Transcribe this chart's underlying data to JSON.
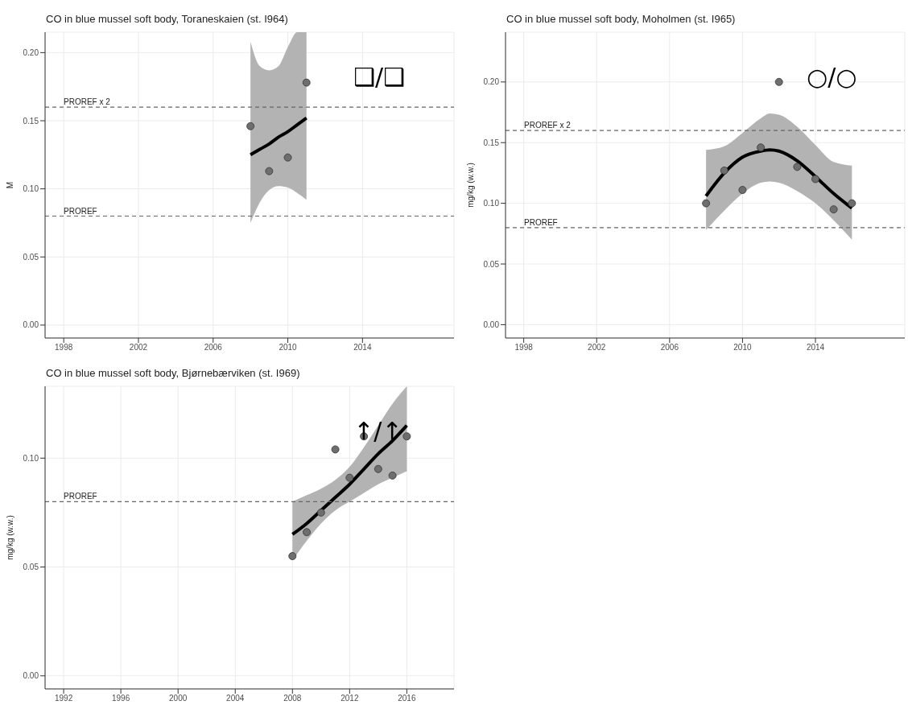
{
  "chart_data": [
    {
      "type": "scatter",
      "title": "CO in blue mussel soft body, Toraneskaien (st. I964)",
      "ylabel": "M",
      "marker": "circle",
      "grid": true,
      "legend": false,
      "xlim": [
        1997,
        2018.9
      ],
      "xticks": [
        1998,
        2002,
        2006,
        2010,
        2014
      ],
      "ylim": [
        -0.0095,
        0.215
      ],
      "yticks": [
        {
          "value": 0,
          "label": "0.00"
        },
        {
          "value": 0.05,
          "label": "0.05"
        },
        {
          "value": 0.1,
          "label": "0.10"
        },
        {
          "value": 0.15,
          "label": "0.15"
        },
        {
          "value": 0.2,
          "label": "0.20"
        }
      ],
      "ref_lines": [
        {
          "axis": "y",
          "value": 0.16,
          "label": "PROREF x 2",
          "color": "#666666",
          "line_style": "dashed"
        },
        {
          "axis": "y",
          "value": 0.08,
          "label": "PROREF",
          "color": "#666666",
          "line_style": "dashed"
        }
      ],
      "annotations": [
        "❑/❑"
      ],
      "series": [
        {
          "color": "#6e6e6e",
          "x": [
            2008,
            2009,
            2010,
            2011
          ],
          "values": [
            0.146,
            0.113,
            0.123,
            0.178
          ]
        },
        {
          "type": "line",
          "marker": "none",
          "color": "#000000",
          "x": [
            2008,
            2008.5,
            2009,
            2009.5,
            2010,
            2010.5,
            2011
          ],
          "values": [
            0.125,
            0.129,
            0.133,
            0.138,
            0.142,
            0.147,
            0.152
          ],
          "lower": [
            0.075,
            0.09,
            0.099,
            0.102,
            0.101,
            0.097,
            0.092
          ],
          "upper": [
            0.208,
            0.19,
            0.187,
            0.19,
            0.204,
            0.215,
            0.215
          ]
        }
      ]
    },
    {
      "type": "scatter",
      "title": "CO in blue mussel soft body, Moholmen (st. I965)",
      "ylabel": "mg/kg (w.w.)",
      "marker": "circle",
      "grid": true,
      "legend": false,
      "xlim": [
        1997,
        2018.9
      ],
      "xticks": [
        1998,
        2002,
        2006,
        2010,
        2014
      ],
      "ylim": [
        -0.011,
        0.241
      ],
      "yticks": [
        {
          "value": 0,
          "label": "0.00"
        },
        {
          "value": 0.05,
          "label": "0.05"
        },
        {
          "value": 0.1,
          "label": "0.10"
        },
        {
          "value": 0.15,
          "label": "0.15"
        },
        {
          "value": 0.2,
          "label": "0.20"
        }
      ],
      "ref_lines": [
        {
          "axis": "y",
          "value": 0.16,
          "label": "PROREF x 2",
          "color": "#666666",
          "line_style": "dashed"
        },
        {
          "axis": "y",
          "value": 0.08,
          "label": "PROREF",
          "color": "#666666",
          "line_style": "dashed"
        }
      ],
      "annotations": [
        "○/○"
      ],
      "series": [
        {
          "color": "#6e6e6e",
          "x": [
            2008,
            2009,
            2010,
            2011,
            2012,
            2013,
            2014,
            2015,
            2016
          ],
          "values": [
            0.1,
            0.127,
            0.111,
            0.146,
            0.2,
            0.13,
            0.12,
            0.095,
            0.1
          ]
        },
        {
          "type": "line",
          "marker": "none",
          "color": "#000000",
          "x": [
            2008,
            2009,
            2010,
            2011,
            2011.5,
            2012,
            2013,
            2014,
            2015,
            2016
          ],
          "values": [
            0.106,
            0.125,
            0.138,
            0.143,
            0.144,
            0.143,
            0.135,
            0.122,
            0.108,
            0.096
          ],
          "lower": [
            0.078,
            0.094,
            0.108,
            0.117,
            0.118,
            0.117,
            0.11,
            0.1,
            0.086,
            0.07
          ],
          "upper": [
            0.144,
            0.147,
            0.158,
            0.17,
            0.174,
            0.173,
            0.163,
            0.148,
            0.134,
            0.131
          ]
        }
      ]
    },
    {
      "type": "scatter",
      "title": "CO in blue mussel soft body, Bjørnebærviken (st. I969)",
      "ylabel": "mg/kg (w.w.)",
      "marker": "circle",
      "grid": true,
      "legend": false,
      "xlim": [
        1990.7,
        2019.3
      ],
      "xticks": [
        1992,
        1996,
        2000,
        2004,
        2008,
        2012,
        2016
      ],
      "ylim": [
        -0.006,
        0.133
      ],
      "yticks": [
        {
          "value": 0,
          "label": "0.00"
        },
        {
          "value": 0.05,
          "label": "0.05"
        },
        {
          "value": 0.1,
          "label": "0.10"
        }
      ],
      "ref_lines": [
        {
          "axis": "y",
          "value": 0.08,
          "label": "PROREF",
          "color": "#666666",
          "line_style": "dashed"
        }
      ],
      "annotations": [
        "↑/↑"
      ],
      "series": [
        {
          "color": "#6e6e6e",
          "x": [
            2008,
            2009,
            2010,
            2011,
            2012,
            2013,
            2014,
            2015,
            2016
          ],
          "values": [
            0.055,
            0.066,
            0.075,
            0.104,
            0.091,
            0.11,
            0.095,
            0.092,
            0.11
          ]
        },
        {
          "type": "line",
          "marker": "none",
          "color": "#000000",
          "x": [
            2008,
            2009,
            2010,
            2011,
            2012,
            2013,
            2014,
            2015,
            2016
          ],
          "values": [
            0.065,
            0.07,
            0.076,
            0.082,
            0.088,
            0.095,
            0.102,
            0.108,
            0.115
          ],
          "lower": [
            0.053,
            0.062,
            0.07,
            0.076,
            0.08,
            0.084,
            0.088,
            0.091,
            0.094
          ],
          "upper": [
            0.08,
            0.083,
            0.086,
            0.09,
            0.096,
            0.105,
            0.115,
            0.125,
            0.133
          ]
        }
      ]
    }
  ]
}
